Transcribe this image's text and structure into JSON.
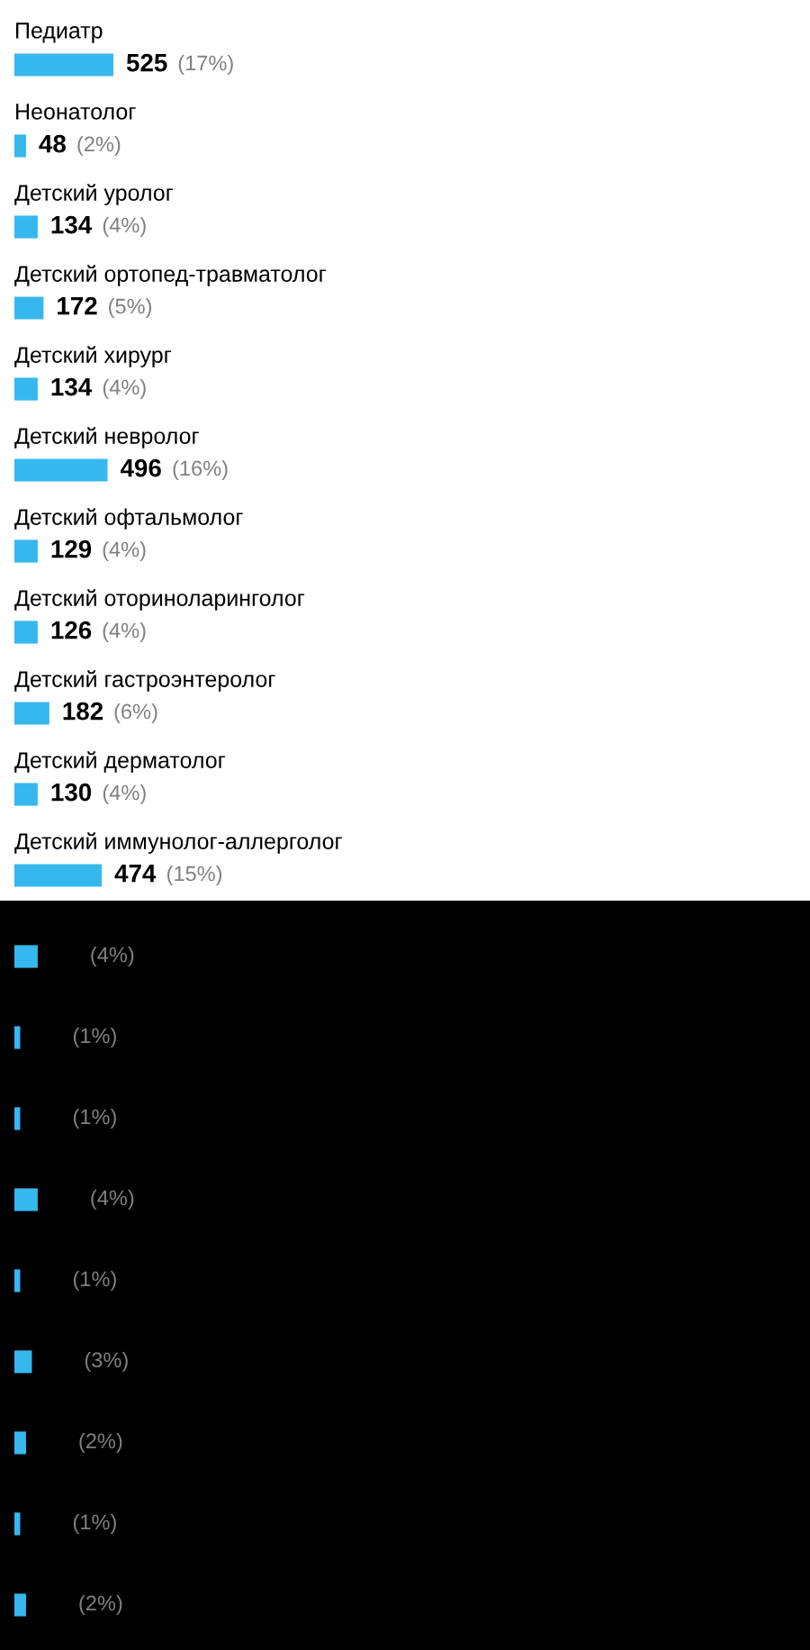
{
  "chart_data": [
    {
      "type": "bar",
      "orientation": "horizontal",
      "color": "#35b8ee",
      "categories": [
        "Педиатр",
        "Неонатолог",
        "Детский уролог",
        "Детский ортопед-травматолог",
        "Детский хирург",
        "Детский невролог",
        "Детский офтальмолог",
        "Детский оториноларинголог",
        "Детский гастроэнтеролог",
        "Детский дерматолог",
        "Детский иммунолог-аллерголог"
      ],
      "values": [
        17,
        2,
        4,
        5,
        4,
        16,
        4,
        4,
        6,
        4,
        15
      ],
      "value_labels": [
        "(17%)",
        "(2%)",
        "(4%)",
        "(5%)",
        "(4%)",
        "(16%)",
        "(4%)",
        "(4%)",
        "(6%)",
        "(4%)",
        "(15%)"
      ],
      "annotations": [
        {
          "text": "525",
          "x": 17,
          "y": "Педиатр"
        },
        {
          "text": "48",
          "x": 2,
          "y": "Неонатолог"
        },
        {
          "text": "134",
          "x": 4,
          "y": "Детский уролог"
        },
        {
          "text": "172",
          "x": 5,
          "y": "Детский ортопед-травматолог"
        },
        {
          "text": "134",
          "x": 4,
          "y": "Детский хирург"
        },
        {
          "text": "496",
          "x": 16,
          "y": "Детский невролог"
        },
        {
          "text": "129",
          "x": 4,
          "y": "Детский офтальмолог"
        },
        {
          "text": "126",
          "x": 4,
          "y": "Детский оториноларинголог"
        },
        {
          "text": "182",
          "x": 6,
          "y": "Детский гастроэнтеролог"
        },
        {
          "text": "130",
          "x": 4,
          "y": "Детский дерматолог"
        },
        {
          "text": "474",
          "x": 15,
          "y": "Детский иммунолог-аллерголог"
        }
      ]
    },
    {
      "type": "bar",
      "orientation": "horizontal",
      "color": "#35b8ee",
      "categories": [
        null,
        null,
        null,
        null,
        null,
        null,
        null,
        null,
        null
      ],
      "values": [
        4,
        1,
        1,
        4,
        1,
        3,
        2,
        1,
        2
      ],
      "value_labels": [
        "(4%)",
        "(1%)",
        "(1%)",
        "(4%)",
        "(1%)",
        "(3%)",
        "(2%)",
        "(1%)",
        "(2%)"
      ]
    }
  ]
}
